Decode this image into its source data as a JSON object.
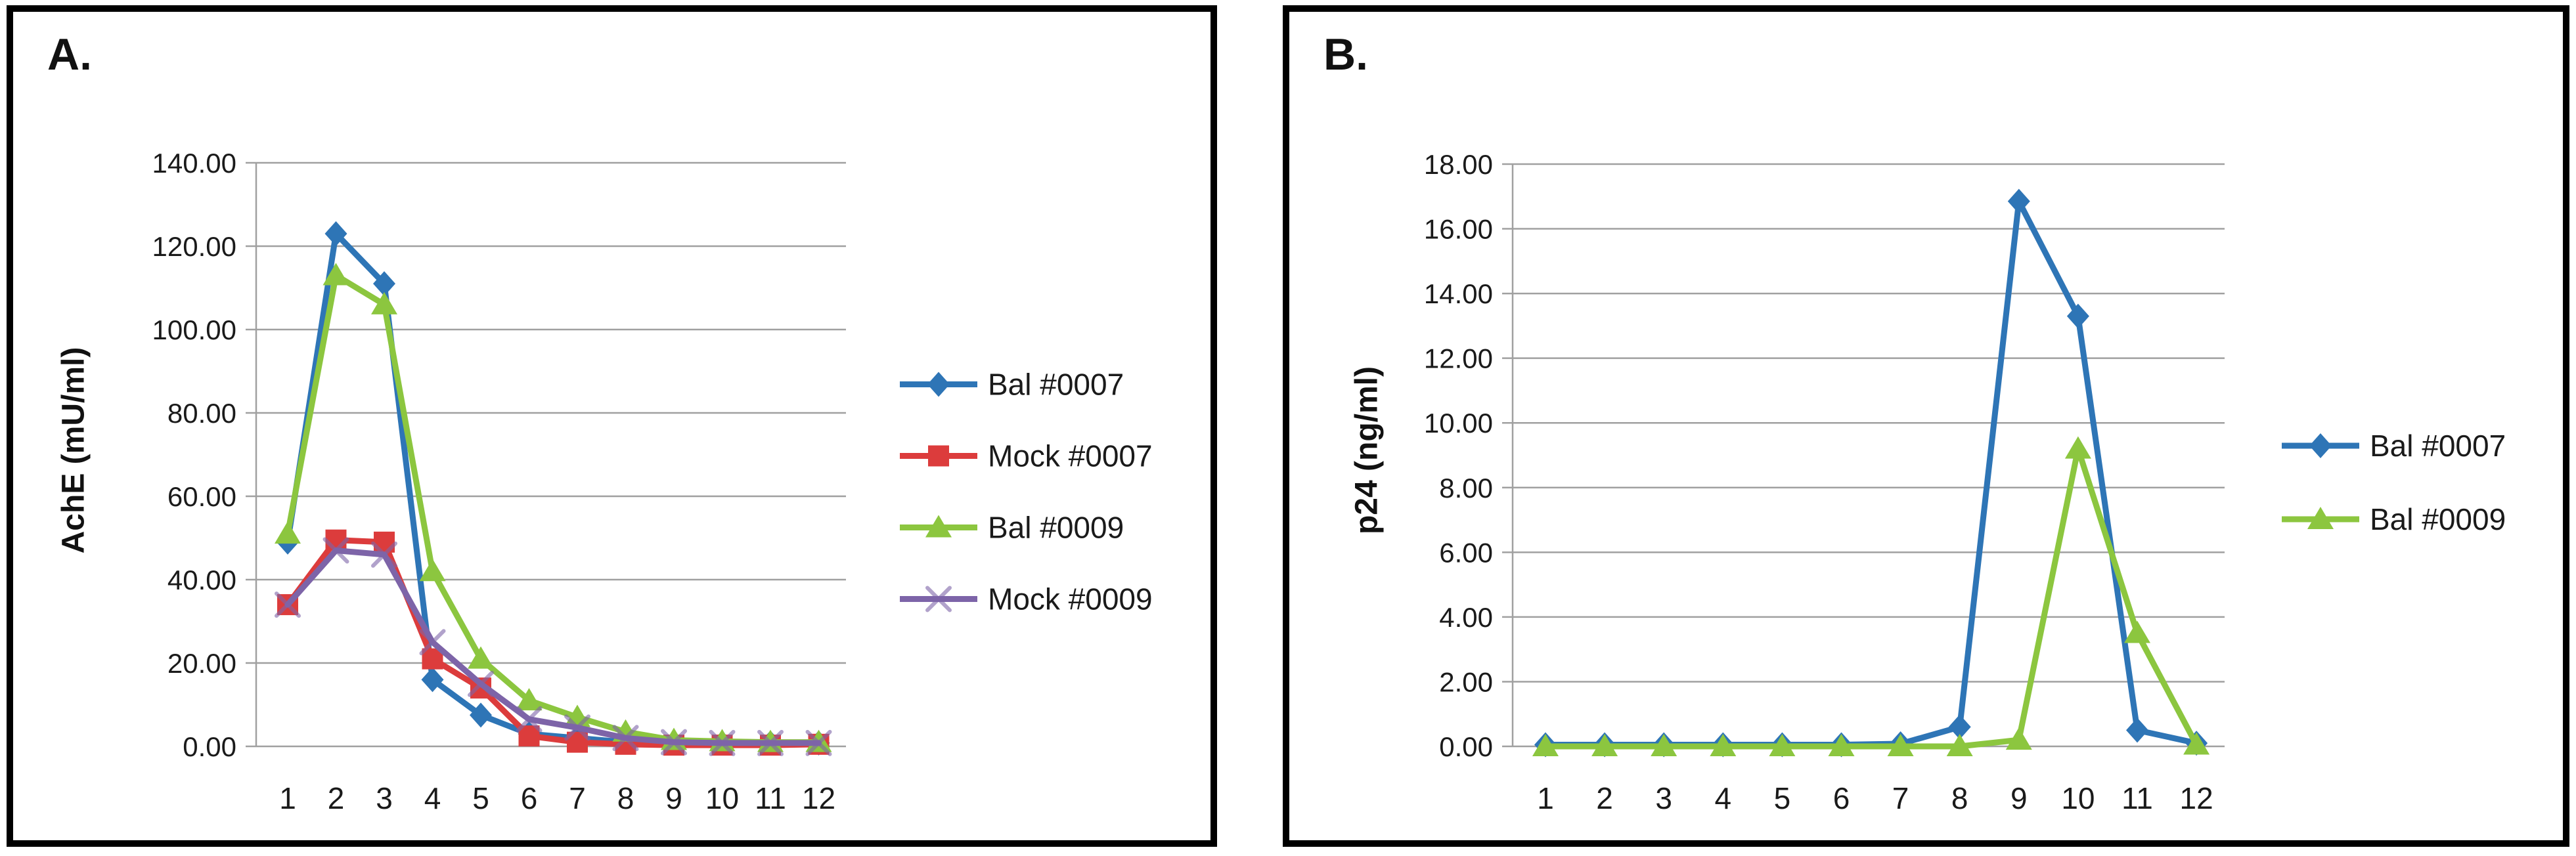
{
  "palette": {
    "background": "#FFFFFF",
    "panel_border": "#000000",
    "grid_line": "#A0A0A0",
    "text": "#1A1A1A",
    "series_blue": "#2E75B6",
    "series_red": "#DC3C3C",
    "series_green": "#8CC63F",
    "series_purple": "#7D64A8"
  },
  "chart_data": [
    {
      "type": "line",
      "panel_label": "A.",
      "title": "",
      "xlabel": "",
      "ylabel": "AchE (mU/ml)",
      "categories": [
        "1",
        "2",
        "3",
        "4",
        "5",
        "6",
        "7",
        "8",
        "9",
        "10",
        "11",
        "12"
      ],
      "ylim": [
        0,
        140
      ],
      "ytick_step": 20,
      "ytick_labels": [
        "0.00",
        "20.00",
        "40.00",
        "60.00",
        "80.00",
        "100.00",
        "120.00",
        "140.00"
      ],
      "grid": true,
      "legend_position": "right",
      "series": [
        {
          "name": "Bal #0007",
          "color": "#2E75B6",
          "marker": "diamond",
          "values": [
            49,
            123,
            111,
            16,
            7.5,
            3,
            2,
            1,
            0.8,
            0.8,
            0.8,
            0.8
          ]
        },
        {
          "name": "Mock #0007",
          "color": "#DC3C3C",
          "marker": "square",
          "values": [
            34,
            49.5,
            49,
            21,
            14,
            2.5,
            1,
            0.5,
            0.3,
            0.3,
            0.3,
            0.5
          ]
        },
        {
          "name": "Bal #0009",
          "color": "#8CC63F",
          "marker": "triangle",
          "values": [
            51,
            113,
            106,
            42,
            21,
            11,
            7,
            3.5,
            1.5,
            1.2,
            1,
            1
          ]
        },
        {
          "name": "Mock #0009",
          "color": "#7D64A8",
          "marker": "x",
          "values": [
            34,
            47,
            46,
            25,
            15,
            6.5,
            4.5,
            2,
            1,
            0.8,
            0.8,
            0.8
          ]
        }
      ]
    },
    {
      "type": "line",
      "panel_label": "B.",
      "title": "",
      "xlabel": "",
      "ylabel": "p24 (ng/ml)",
      "categories": [
        "1",
        "2",
        "3",
        "4",
        "5",
        "6",
        "7",
        "8",
        "9",
        "10",
        "11",
        "12"
      ],
      "ylim": [
        0,
        18
      ],
      "ytick_step": 2,
      "ytick_labels": [
        "0.00",
        "2.00",
        "4.00",
        "6.00",
        "8.00",
        "10.00",
        "12.00",
        "14.00",
        "16.00",
        "18.00"
      ],
      "grid": true,
      "legend_position": "right",
      "series": [
        {
          "name": "Bal #0007",
          "color": "#2E75B6",
          "marker": "diamond",
          "values": [
            0.05,
            0.05,
            0.05,
            0.05,
            0.05,
            0.05,
            0.08,
            0.6,
            16.85,
            13.3,
            0.5,
            0.1
          ]
        },
        {
          "name": "Bal #0009",
          "color": "#8CC63F",
          "marker": "triangle",
          "values": [
            0,
            0,
            0,
            0,
            0,
            0,
            0,
            0,
            0.2,
            9.2,
            3.5,
            0.05
          ]
        }
      ]
    }
  ]
}
